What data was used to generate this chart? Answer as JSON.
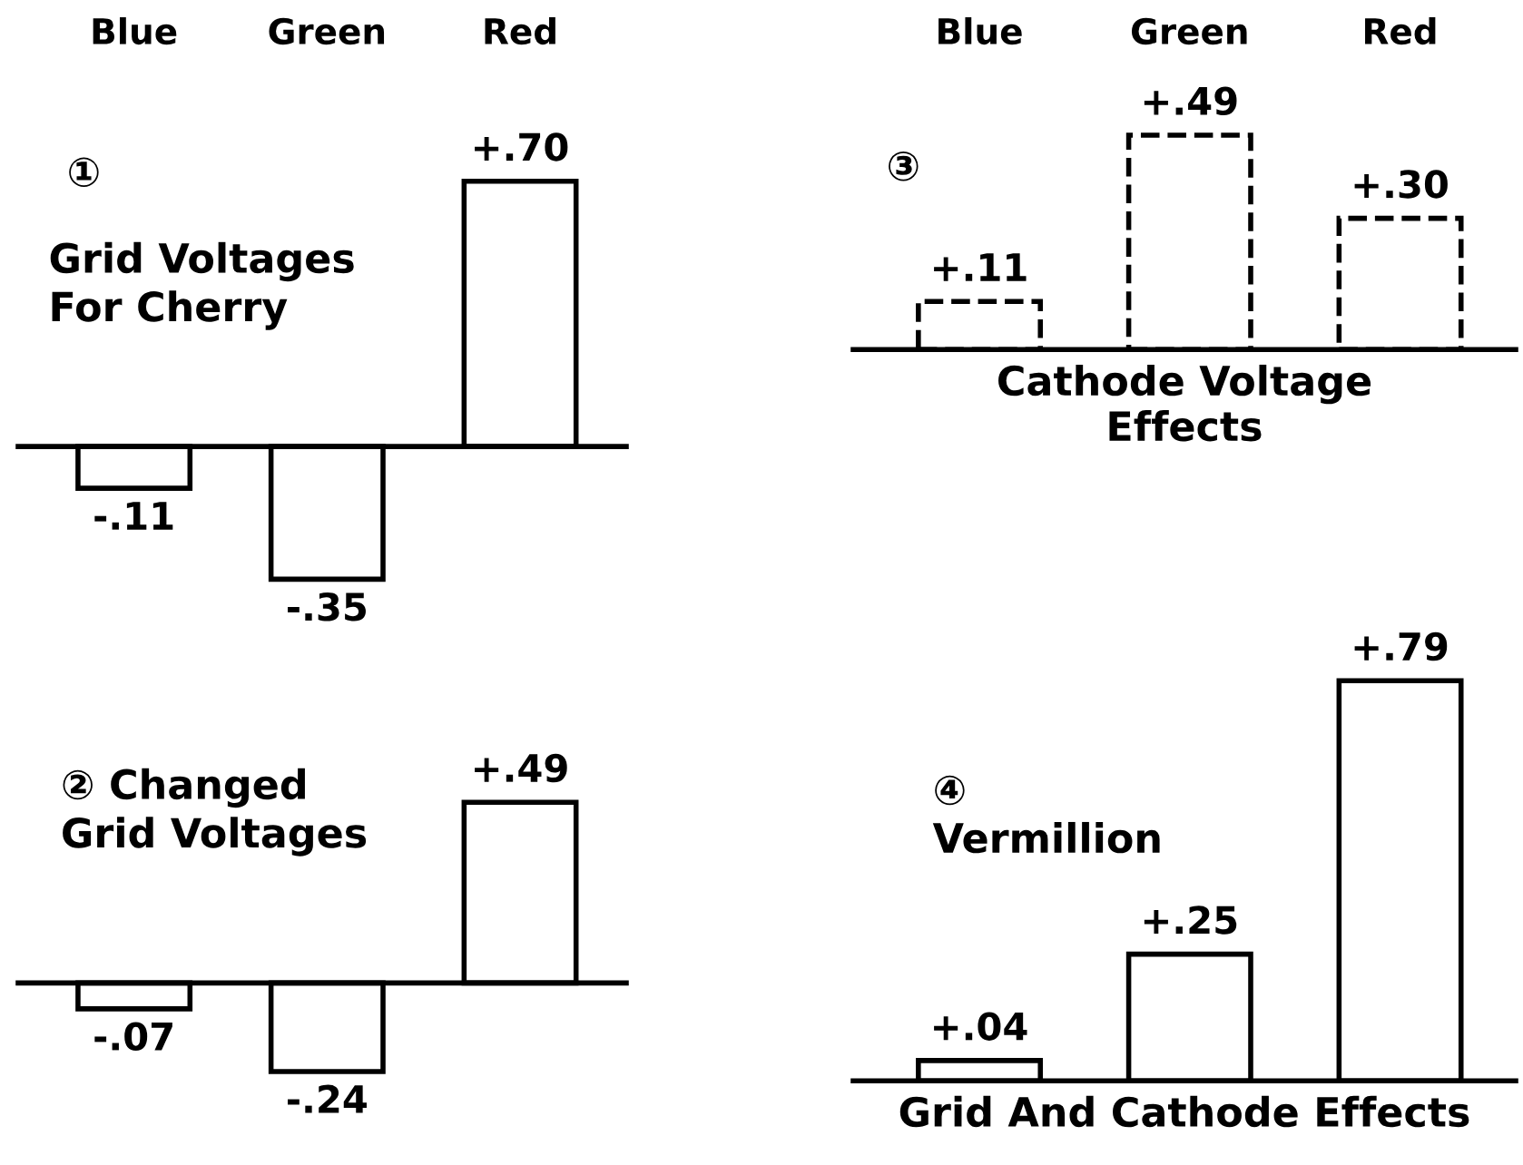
{
  "chart_data": [
    {
      "type": "bar",
      "categories": [
        "Blue",
        "Green",
        "Red"
      ],
      "values": [
        -0.11,
        -0.35,
        0.7
      ],
      "value_labels": [
        "-.11",
        "-.35",
        "+.70"
      ],
      "color": "#ffffff",
      "line_style": "solid",
      "tick_labels": "x",
      "annotations": [
        "①",
        "Grid Voltages\nFor Cherry"
      ]
    },
    {
      "type": "bar",
      "categories": [
        null,
        null,
        null
      ],
      "values": [
        -0.07,
        -0.24,
        0.49
      ],
      "value_labels": [
        "-.07",
        "-.24",
        "+.49"
      ],
      "color": "#ffffff",
      "line_style": "solid",
      "tick_labels": false,
      "annotations": [
        "② Changed\nGrid Voltages"
      ]
    },
    {
      "type": "bar",
      "categories": [
        "Blue",
        "Green",
        "Red"
      ],
      "values": [
        0.11,
        0.49,
        0.3
      ],
      "value_labels": [
        "+.11",
        "+.49",
        "+.30"
      ],
      "color": "#ffffff",
      "line_style": "dashed",
      "tick_labels": "x",
      "xlabel": "Cathode Voltage\nEffects",
      "annotations": [
        "③"
      ]
    },
    {
      "type": "bar",
      "categories": [
        null,
        null,
        null
      ],
      "values": [
        0.04,
        0.25,
        0.79
      ],
      "value_labels": [
        "+.04",
        "+.25",
        "+.79"
      ],
      "color": "#ffffff",
      "line_style": "solid",
      "tick_labels": false,
      "xlabel": "Grid And Cathode Effects",
      "annotations": [
        "④\nVermillion"
      ]
    }
  ]
}
